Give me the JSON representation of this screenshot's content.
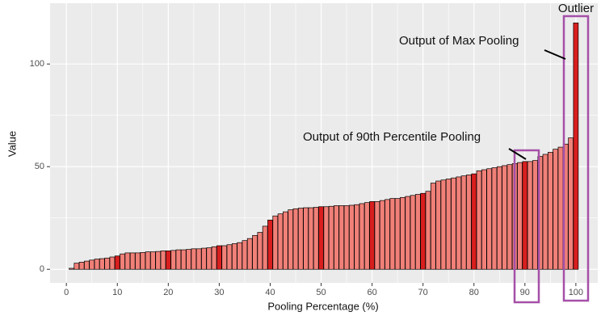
{
  "chart_data": {
    "type": "bar",
    "x_label": "Pooling Percentage (%)",
    "y_label": "Value",
    "x": [
      1,
      2,
      3,
      4,
      5,
      6,
      7,
      8,
      9,
      10,
      11,
      12,
      13,
      14,
      15,
      16,
      17,
      18,
      19,
      20,
      21,
      22,
      23,
      24,
      25,
      26,
      27,
      28,
      29,
      30,
      31,
      32,
      33,
      34,
      35,
      36,
      37,
      38,
      39,
      40,
      41,
      42,
      43,
      44,
      45,
      46,
      47,
      48,
      49,
      50,
      51,
      52,
      53,
      54,
      55,
      56,
      57,
      58,
      59,
      60,
      61,
      62,
      63,
      64,
      65,
      66,
      67,
      68,
      69,
      70,
      71,
      72,
      73,
      74,
      75,
      76,
      77,
      78,
      79,
      80,
      81,
      82,
      83,
      84,
      85,
      86,
      87,
      88,
      89,
      90,
      91,
      92,
      93,
      94,
      95,
      96,
      97,
      98,
      99,
      100
    ],
    "values": [
      0.5,
      3,
      3.5,
      4,
      4.5,
      5,
      5.2,
      5.5,
      6,
      6.5,
      7.5,
      8,
      8,
      8,
      8.2,
      8.5,
      8.5,
      8.7,
      9,
      9,
      9.2,
      9.5,
      9.5,
      9.7,
      10,
      10,
      10.3,
      10.5,
      11,
      11.5,
      11.5,
      12,
      12.5,
      13,
      14,
      15,
      16.5,
      18,
      21,
      24,
      26,
      27,
      28,
      29,
      29.5,
      29.8,
      30,
      30,
      30.2,
      30.5,
      30.5,
      30.7,
      31,
      31,
      31,
      31.2,
      31.5,
      32,
      32.5,
      33,
      33,
      33.5,
      34,
      34.5,
      34.5,
      35,
      35.5,
      36,
      36.5,
      37,
      38,
      42,
      43,
      43.5,
      44,
      44.5,
      45,
      45.5,
      46,
      46.5,
      48,
      48.5,
      49,
      49.5,
      50,
      50.5,
      51,
      51.5,
      52,
      52.5,
      52.5,
      53,
      55,
      56,
      57,
      58.5,
      59.5,
      61,
      64,
      120
    ],
    "colors": [
      "#f08078",
      "#f08078",
      "#f08078",
      "#f08078",
      "#f08078",
      "#f08078",
      "#f08078",
      "#f08078",
      "#f08078",
      "#d91e1e",
      "#f08078",
      "#f08078",
      "#f08078",
      "#f08078",
      "#f08078",
      "#f08078",
      "#f08078",
      "#f08078",
      "#f08078",
      "#d91e1e",
      "#f08078",
      "#f08078",
      "#f08078",
      "#f08078",
      "#f08078",
      "#f08078",
      "#f08078",
      "#f08078",
      "#f08078",
      "#d91e1e",
      "#f08078",
      "#f08078",
      "#f08078",
      "#f08078",
      "#f08078",
      "#f08078",
      "#f08078",
      "#f08078",
      "#f08078",
      "#d91e1e",
      "#f08078",
      "#f08078",
      "#f08078",
      "#f08078",
      "#f08078",
      "#f08078",
      "#f08078",
      "#f08078",
      "#f08078",
      "#d91e1e",
      "#f08078",
      "#f08078",
      "#f08078",
      "#f08078",
      "#f08078",
      "#f08078",
      "#f08078",
      "#f08078",
      "#f08078",
      "#d91e1e",
      "#f08078",
      "#f08078",
      "#f08078",
      "#f08078",
      "#f08078",
      "#f08078",
      "#f08078",
      "#f08078",
      "#f08078",
      "#d91e1e",
      "#f08078",
      "#f08078",
      "#f08078",
      "#f08078",
      "#f08078",
      "#f08078",
      "#f08078",
      "#f08078",
      "#f08078",
      "#d91e1e",
      "#f08078",
      "#f08078",
      "#f08078",
      "#f08078",
      "#f08078",
      "#f08078",
      "#f08078",
      "#f08078",
      "#f08078",
      "#d91e1e",
      "#f08078",
      "#f08078",
      "#f08078",
      "#f08078",
      "#f08078",
      "#f08078",
      "#f08078",
      "#f08078",
      "#f08078",
      "#d91e1e"
    ],
    "xlim": [
      -3.2,
      104.3
    ],
    "xticks": [
      0,
      10,
      20,
      30,
      40,
      50,
      60,
      70,
      80,
      90,
      100
    ],
    "ylim": [
      -6.6,
      129.6
    ],
    "yticks": [
      0,
      50,
      100
    ],
    "grid": true,
    "annotations": [
      "Outlier",
      "Output of Max Pooling",
      "Output of 90th Percentile Pooling"
    ]
  }
}
